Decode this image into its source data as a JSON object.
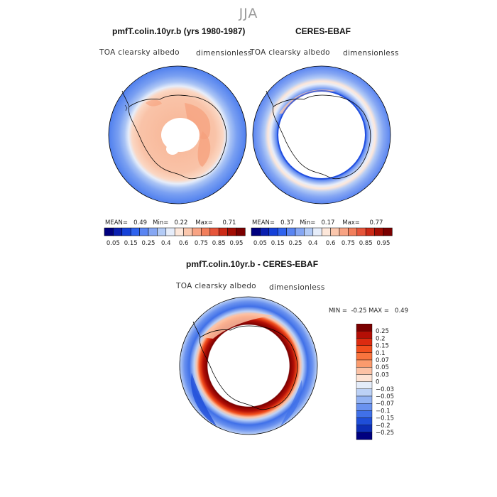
{
  "season": "JJA",
  "panels": {
    "model": {
      "title": "pmfT.colin.10yr.b (yrs 1980-1987)",
      "var": "TOA clearsky albedo",
      "units": "dimensionless",
      "mean_label": "MEAN=",
      "mean": "0.49",
      "min_label": "Min=",
      "min": "0.22",
      "max_label": "Max=",
      "max": "0.71"
    },
    "obs": {
      "title": "CERES-EBAF",
      "var": "TOA clearsky albedo",
      "units": "dimensionless",
      "mean_label": "MEAN=",
      "mean": "0.37",
      "min_label": "Min=",
      "min": "0.17",
      "max_label": "Max=",
      "max": "0.77"
    },
    "diff": {
      "title": "pmfT.colin.10yr.b - CERES-EBAF",
      "var": "TOA clearsky albedo",
      "units": "dimensionless",
      "min_label": "MIN =",
      "min": "-0.25",
      "max_label": "MAX =",
      "max": "0.49"
    }
  },
  "abs_colorbar": {
    "colors": [
      "#00007f",
      "#0a1fb0",
      "#1541d8",
      "#2f63ee",
      "#5a85f2",
      "#86a7f3",
      "#b3cbf6",
      "#e6edfa",
      "#fde7da",
      "#fbc7ad",
      "#f8a383",
      "#f27f5c",
      "#e6553a",
      "#cc2a17",
      "#a30d04",
      "#7a0000"
    ],
    "labels": [
      "0.05",
      "0.15",
      "0.25",
      "0.4",
      "0.6",
      "0.75",
      "0.85",
      "0.95"
    ]
  },
  "diff_colorbar": {
    "colors": [
      "#7a0000",
      "#b40f06",
      "#dc2b10",
      "#f24f1e",
      "#f8743e",
      "#fb9b6d",
      "#fcc2a5",
      "#fde3d4",
      "#e4ecf9",
      "#bcd1f6",
      "#93b3f3",
      "#6a92ef",
      "#4070e8",
      "#1f4ed8",
      "#0d2eb5",
      "#00007f"
    ],
    "labels": [
      "0.25",
      "0.2",
      "0.15",
      "0.1",
      "0.07",
      "0.05",
      "0.03",
      "0",
      "−0.03",
      "−0.05",
      "−0.07",
      "−0.1",
      "−0.15",
      "−0.2",
      "−0.25"
    ]
  }
}
